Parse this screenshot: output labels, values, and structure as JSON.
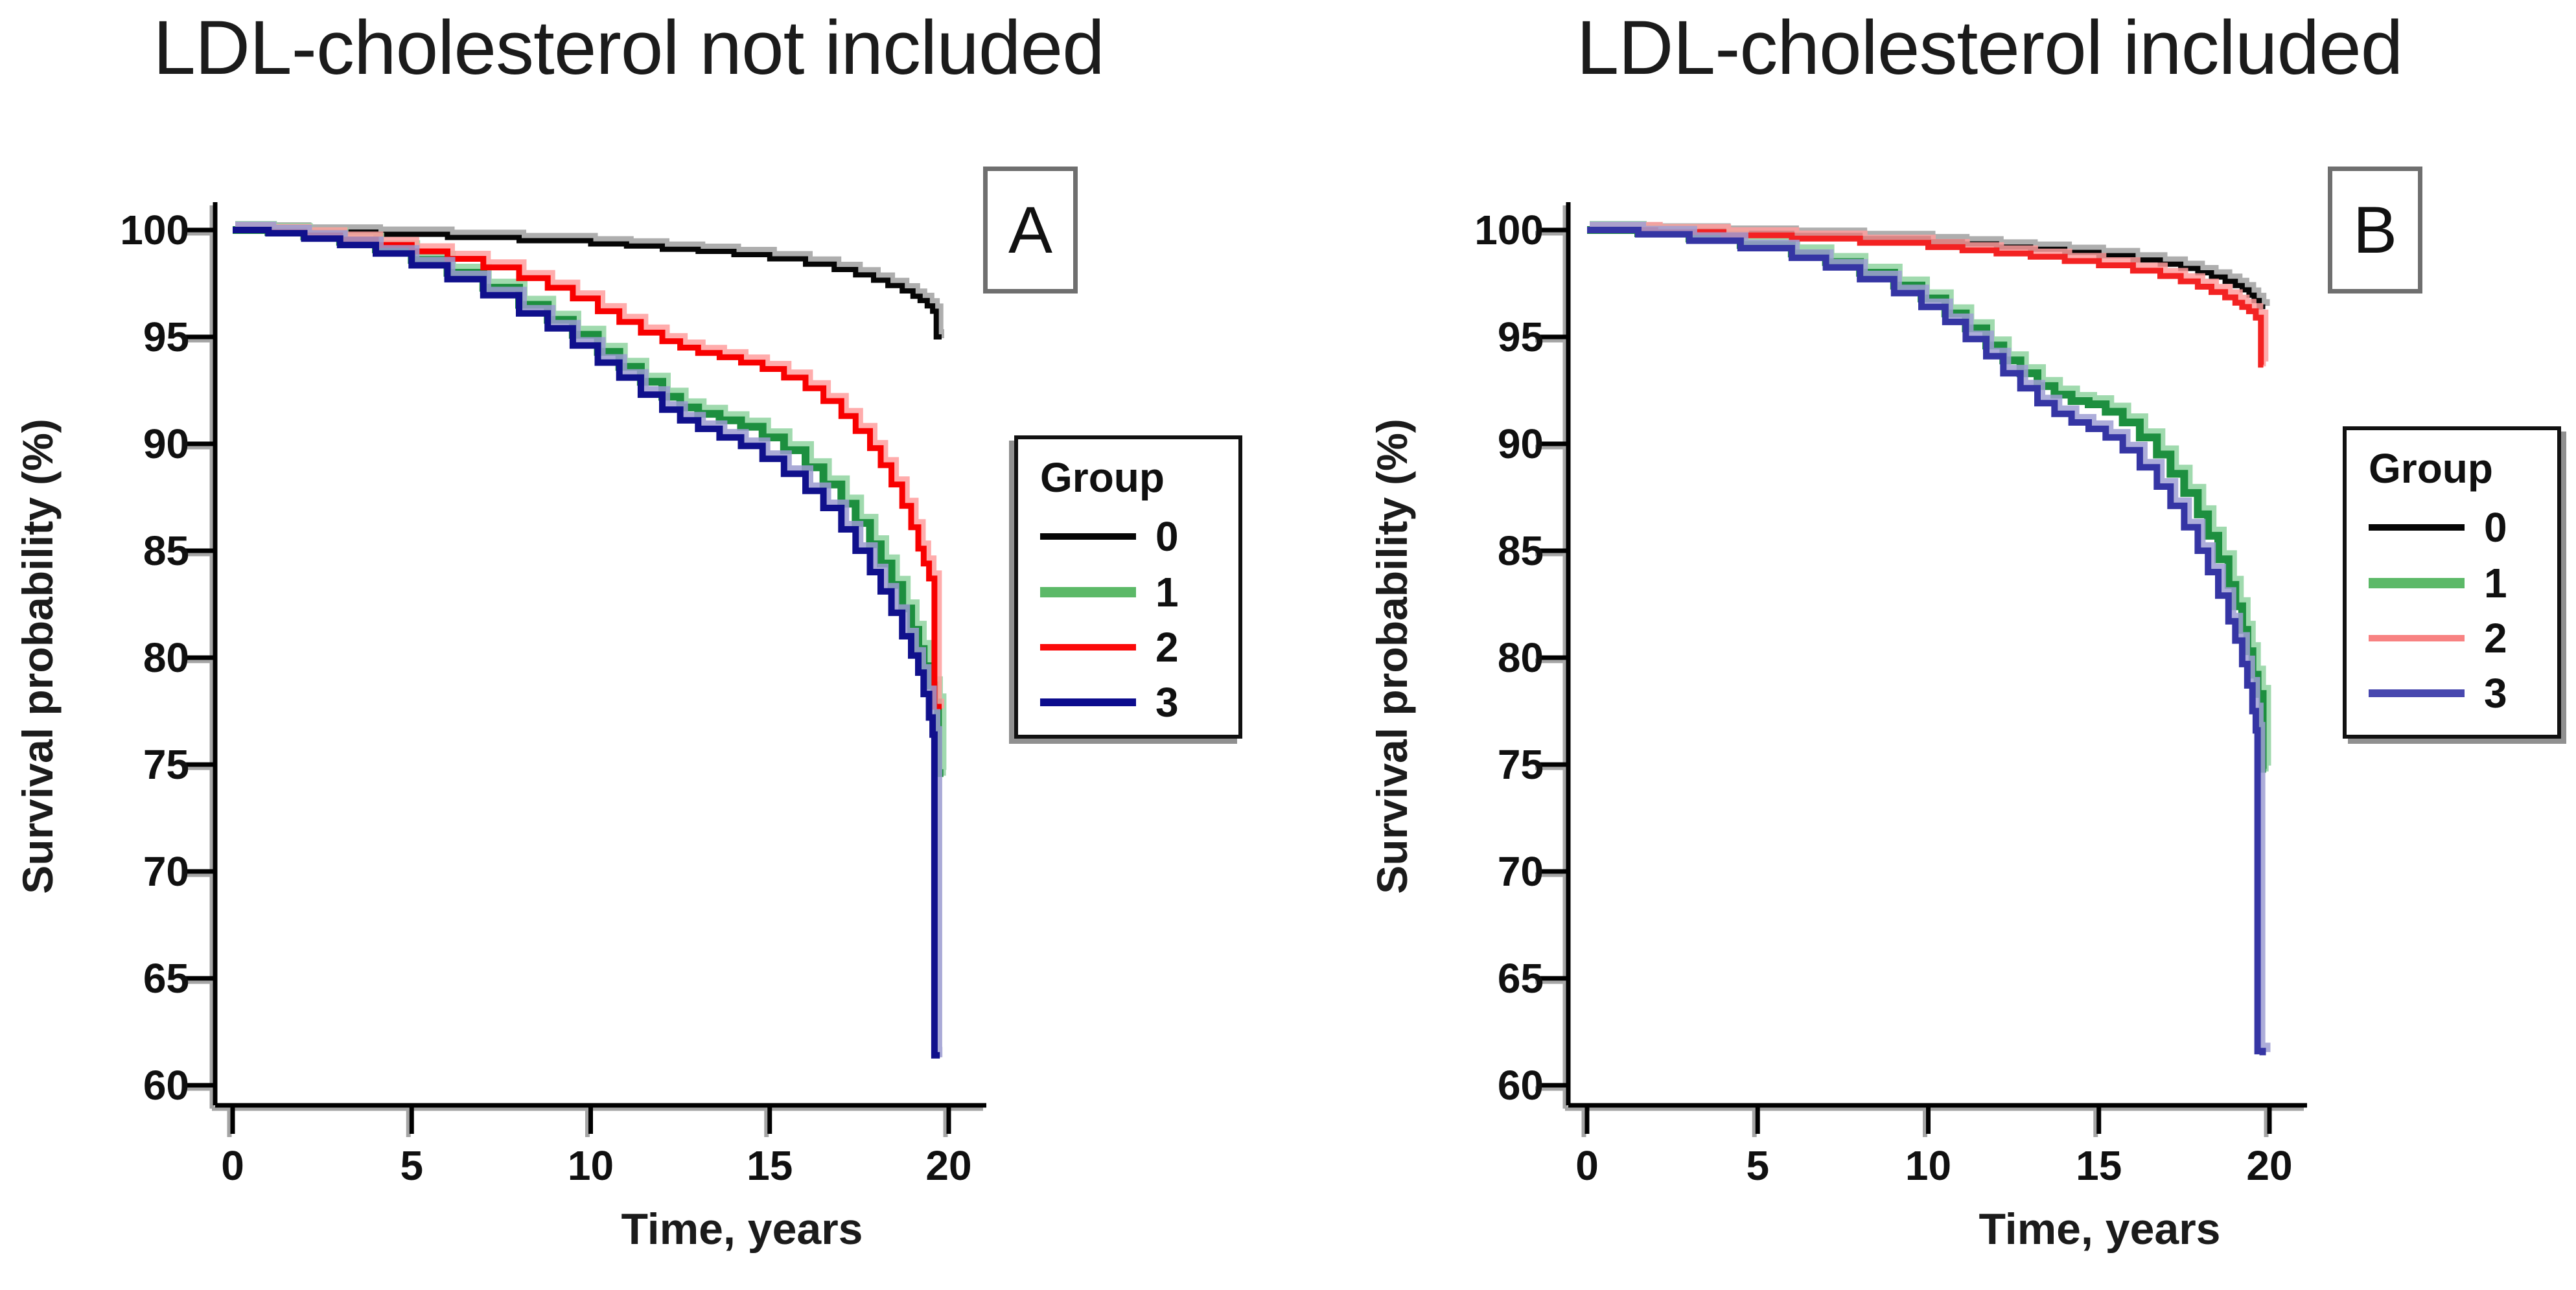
{
  "titles": {
    "panel_a": "LDL-cholesterol not included",
    "panel_b": "LDL-cholesterol included"
  },
  "panel_tags": {
    "a": "A",
    "b": "B"
  },
  "axes": {
    "y_label": "Survival probability (%)",
    "x_label": "Time, years",
    "y_ticks": [
      100,
      95,
      90,
      85,
      80,
      75,
      70,
      65,
      60
    ],
    "x_ticks": [
      0,
      5,
      10,
      15,
      20
    ],
    "y_range": [
      60,
      100
    ],
    "x_range": [
      0,
      20
    ]
  },
  "legend": {
    "title": "Group"
  },
  "chart_data": [
    {
      "type": "line",
      "subtype": "kaplan-meier-step",
      "title": "LDL-cholesterol not included",
      "panel_tag": "A",
      "xlabel": "Time, years",
      "ylabel": "Survival probability (%)",
      "xlim": [
        0,
        20
      ],
      "ylim": [
        60,
        100
      ],
      "grid": false,
      "legend_title": "Group",
      "legend_position": "right",
      "series": [
        {
          "name": "0",
          "color": "#060606",
          "halo": "#a0a0a0",
          "legend_color": "#060606",
          "width": 8,
          "points": [
            [
              0,
              100
            ],
            [
              2,
              99.9
            ],
            [
              4,
              99.8
            ],
            [
              6,
              99.65
            ],
            [
              8,
              99.5
            ],
            [
              10,
              99.35
            ],
            [
              11,
              99.25
            ],
            [
              12,
              99.1
            ],
            [
              13,
              99
            ],
            [
              14,
              98.85
            ],
            [
              15,
              98.65
            ],
            [
              16,
              98.4
            ],
            [
              16.8,
              98.15
            ],
            [
              17.4,
              97.9
            ],
            [
              17.9,
              97.65
            ],
            [
              18.3,
              97.4
            ],
            [
              18.7,
              97.15
            ],
            [
              19,
              96.9
            ],
            [
              19.2,
              96.7
            ],
            [
              19.4,
              96.45
            ],
            [
              19.55,
              96.2
            ],
            [
              19.65,
              96
            ],
            [
              19.65,
              95
            ],
            [
              19.8,
              95
            ]
          ]
        },
        {
          "name": "1",
          "color": "#1d8f3f",
          "halo": "#8fd3a0",
          "legend_color": "#5cb968",
          "width": 12,
          "points": [
            [
              0,
              100
            ],
            [
              1,
              99.9
            ],
            [
              2,
              99.7
            ],
            [
              3,
              99.45
            ],
            [
              4,
              99.1
            ],
            [
              5,
              98.6
            ],
            [
              6,
              98
            ],
            [
              7,
              97.3
            ],
            [
              8,
              96.5
            ],
            [
              8.8,
              95.8
            ],
            [
              9.5,
              95.1
            ],
            [
              10.2,
              94.3
            ],
            [
              10.8,
              93.6
            ],
            [
              11.4,
              92.9
            ],
            [
              12,
              92.2
            ],
            [
              12.5,
              91.7
            ],
            [
              13,
              91.4
            ],
            [
              13.6,
              91.1
            ],
            [
              14.2,
              90.8
            ],
            [
              14.8,
              90.3
            ],
            [
              15.4,
              89.7
            ],
            [
              16,
              88.9
            ],
            [
              16.5,
              88.1
            ],
            [
              17,
              87.2
            ],
            [
              17.4,
              86.3
            ],
            [
              17.8,
              85.3
            ],
            [
              18.1,
              84.4
            ],
            [
              18.4,
              83.4
            ],
            [
              18.7,
              82.3
            ],
            [
              18.95,
              81.3
            ],
            [
              19.15,
              80.4
            ],
            [
              19.3,
              79.6
            ],
            [
              19.45,
              78.7
            ],
            [
              19.6,
              77.9
            ],
            [
              19.7,
              77.2
            ],
            [
              19.7,
              74.6
            ],
            [
              19.85,
              74.6
            ]
          ]
        },
        {
          "name": "2",
          "color": "#f80000",
          "halo": "#ff9e9e",
          "legend_color": "#fb0a0a",
          "width": 9,
          "points": [
            [
              0,
              100
            ],
            [
              1,
              99.9
            ],
            [
              2,
              99.75
            ],
            [
              3,
              99.55
            ],
            [
              4,
              99.3
            ],
            [
              5,
              99
            ],
            [
              6,
              98.65
            ],
            [
              7,
              98.25
            ],
            [
              8,
              97.75
            ],
            [
              8.8,
              97.3
            ],
            [
              9.5,
              96.8
            ],
            [
              10.2,
              96.2
            ],
            [
              10.8,
              95.7
            ],
            [
              11.4,
              95.2
            ],
            [
              12,
              94.8
            ],
            [
              12.5,
              94.5
            ],
            [
              13,
              94.25
            ],
            [
              13.6,
              94.05
            ],
            [
              14.2,
              93.8
            ],
            [
              14.8,
              93.5
            ],
            [
              15.4,
              93.1
            ],
            [
              16,
              92.6
            ],
            [
              16.5,
              92
            ],
            [
              17,
              91.3
            ],
            [
              17.4,
              90.6
            ],
            [
              17.8,
              89.8
            ],
            [
              18.1,
              89
            ],
            [
              18.4,
              88.1
            ],
            [
              18.7,
              87.1
            ],
            [
              18.95,
              86.1
            ],
            [
              19.15,
              85.1
            ],
            [
              19.3,
              84.4
            ],
            [
              19.45,
              83.7
            ],
            [
              19.6,
              83.2
            ],
            [
              19.6,
              77.7
            ],
            [
              19.8,
              77.7
            ]
          ]
        },
        {
          "name": "3",
          "color": "#10108c",
          "halo": "#9b9bd0",
          "legend_color": "#0c0c8d",
          "width": 10,
          "points": [
            [
              0,
              100
            ],
            [
              1,
              99.85
            ],
            [
              2,
              99.6
            ],
            [
              3,
              99.3
            ],
            [
              4,
              98.9
            ],
            [
              5,
              98.35
            ],
            [
              6,
              97.7
            ],
            [
              7,
              96.95
            ],
            [
              8,
              96.1
            ],
            [
              8.8,
              95.4
            ],
            [
              9.5,
              94.6
            ],
            [
              10.2,
              93.8
            ],
            [
              10.8,
              93.1
            ],
            [
              11.4,
              92.3
            ],
            [
              12,
              91.6
            ],
            [
              12.5,
              91.1
            ],
            [
              13,
              90.7
            ],
            [
              13.6,
              90.3
            ],
            [
              14.2,
              89.9
            ],
            [
              14.8,
              89.3
            ],
            [
              15.4,
              88.6
            ],
            [
              16,
              87.8
            ],
            [
              16.5,
              87
            ],
            [
              17,
              86
            ],
            [
              17.4,
              85
            ],
            [
              17.8,
              84
            ],
            [
              18.1,
              83.1
            ],
            [
              18.4,
              82.1
            ],
            [
              18.7,
              81
            ],
            [
              18.95,
              80.1
            ],
            [
              19.15,
              79.3
            ],
            [
              19.3,
              78.3
            ],
            [
              19.45,
              77.2
            ],
            [
              19.55,
              76.4
            ],
            [
              19.6,
              75.8
            ],
            [
              19.6,
              61.4
            ],
            [
              19.75,
              61.4
            ]
          ]
        }
      ]
    },
    {
      "type": "line",
      "subtype": "kaplan-meier-step",
      "title": "LDL-cholesterol included",
      "panel_tag": "B",
      "xlabel": "Time, years",
      "ylabel": "Survival probability (%)",
      "xlim": [
        0,
        20
      ],
      "ylim": [
        60,
        100
      ],
      "grid": false,
      "legend_title": "Group",
      "legend_position": "right",
      "series": [
        {
          "name": "0",
          "color": "#060606",
          "halo": "#a0a0a0",
          "legend_color": "#060606",
          "width": 8,
          "points": [
            [
              0,
              100
            ],
            [
              2,
              99.95
            ],
            [
              4,
              99.85
            ],
            [
              6,
              99.75
            ],
            [
              8,
              99.6
            ],
            [
              10,
              99.45
            ],
            [
              11,
              99.35
            ],
            [
              12,
              99.2
            ],
            [
              13,
              99.1
            ],
            [
              14,
              98.95
            ],
            [
              15,
              98.8
            ],
            [
              16,
              98.6
            ],
            [
              16.8,
              98.4
            ],
            [
              17.4,
              98.2
            ],
            [
              17.9,
              98
            ],
            [
              18.3,
              97.8
            ],
            [
              18.7,
              97.6
            ],
            [
              19,
              97.4
            ],
            [
              19.2,
              97.2
            ],
            [
              19.4,
              96.95
            ],
            [
              19.55,
              96.7
            ],
            [
              19.7,
              96.4
            ],
            [
              19.8,
              96.3
            ]
          ]
        },
        {
          "name": "1",
          "color": "#1d8f3f",
          "halo": "#8fd3a0",
          "legend_color": "#5cb968",
          "width": 12,
          "points": [
            [
              0,
              100
            ],
            [
              1.5,
              99.85
            ],
            [
              3,
              99.6
            ],
            [
              4.5,
              99.3
            ],
            [
              6,
              98.9
            ],
            [
              7,
              98.5
            ],
            [
              8,
              98
            ],
            [
              9,
              97.4
            ],
            [
              9.8,
              96.8
            ],
            [
              10.5,
              96.1
            ],
            [
              11.1,
              95.4
            ],
            [
              11.7,
              94.6
            ],
            [
              12.2,
              93.9
            ],
            [
              12.7,
              93.3
            ],
            [
              13.2,
              92.7
            ],
            [
              13.7,
              92.3
            ],
            [
              14.2,
              92
            ],
            [
              14.7,
              91.85
            ],
            [
              15.2,
              91.5
            ],
            [
              15.7,
              91
            ],
            [
              16.2,
              90.3
            ],
            [
              16.7,
              89.5
            ],
            [
              17.1,
              88.6
            ],
            [
              17.5,
              87.7
            ],
            [
              17.9,
              86.7
            ],
            [
              18.2,
              85.7
            ],
            [
              18.5,
              84.6
            ],
            [
              18.8,
              83.4
            ],
            [
              19,
              82.4
            ],
            [
              19.2,
              81.3
            ],
            [
              19.35,
              80.3
            ],
            [
              19.5,
              79.2
            ],
            [
              19.65,
              78.3
            ],
            [
              19.8,
              77.5
            ],
            [
              19.8,
              74.8
            ],
            [
              19.9,
              74.8
            ]
          ]
        },
        {
          "name": "2",
          "color": "#f32222",
          "halo": "#ff9e9e",
          "legend_color": "#f88282",
          "width": 9,
          "points": [
            [
              0,
              100
            ],
            [
              2,
              99.9
            ],
            [
              4,
              99.75
            ],
            [
              6,
              99.6
            ],
            [
              8,
              99.4
            ],
            [
              10,
              99.2
            ],
            [
              11,
              99.05
            ],
            [
              12,
              98.9
            ],
            [
              13,
              98.75
            ],
            [
              14,
              98.55
            ],
            [
              15,
              98.35
            ],
            [
              16,
              98.1
            ],
            [
              16.8,
              97.85
            ],
            [
              17.4,
              97.6
            ],
            [
              17.9,
              97.35
            ],
            [
              18.3,
              97.1
            ],
            [
              18.7,
              96.85
            ],
            [
              19,
              96.6
            ],
            [
              19.2,
              96.4
            ],
            [
              19.4,
              96.2
            ],
            [
              19.6,
              95.9
            ],
            [
              19.75,
              95.7
            ],
            [
              19.75,
              93.7
            ],
            [
              19.82,
              93.7
            ]
          ]
        },
        {
          "name": "3",
          "color": "#3535a4",
          "halo": "#9f9fd4",
          "legend_color": "#4848af",
          "width": 10,
          "points": [
            [
              0,
              100
            ],
            [
              1.5,
              99.8
            ],
            [
              3,
              99.5
            ],
            [
              4.5,
              99.15
            ],
            [
              6,
              98.7
            ],
            [
              7,
              98.25
            ],
            [
              8,
              97.7
            ],
            [
              9,
              97.05
            ],
            [
              9.8,
              96.4
            ],
            [
              10.5,
              95.7
            ],
            [
              11.1,
              94.9
            ],
            [
              11.7,
              94.1
            ],
            [
              12.2,
              93.3
            ],
            [
              12.7,
              92.6
            ],
            [
              13.2,
              91.9
            ],
            [
              13.7,
              91.4
            ],
            [
              14.2,
              91
            ],
            [
              14.7,
              90.7
            ],
            [
              15.2,
              90.3
            ],
            [
              15.7,
              89.7
            ],
            [
              16.2,
              88.9
            ],
            [
              16.7,
              88
            ],
            [
              17.1,
              87.1
            ],
            [
              17.5,
              86.1
            ],
            [
              17.9,
              85
            ],
            [
              18.2,
              84
            ],
            [
              18.5,
              82.9
            ],
            [
              18.8,
              81.7
            ],
            [
              19,
              80.8
            ],
            [
              19.2,
              79.7
            ],
            [
              19.35,
              78.7
            ],
            [
              19.5,
              77.5
            ],
            [
              19.6,
              76.6
            ],
            [
              19.65,
              76
            ],
            [
              19.65,
              61.6
            ],
            [
              19.8,
              61.4
            ]
          ]
        }
      ]
    }
  ]
}
